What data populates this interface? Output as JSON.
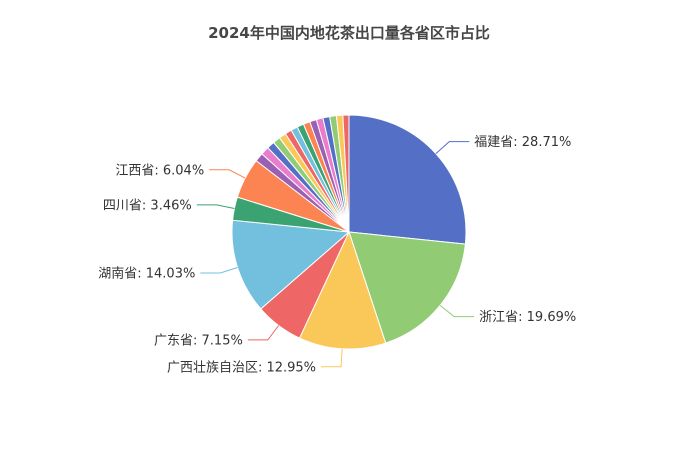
{
  "chart_data": {
    "type": "pie",
    "title": "2024年中国内地花茶出口量各省区市占比",
    "slices": [
      {
        "name": "福建省",
        "value": 28.71,
        "label": "福建省: 28.71%",
        "color": "#5470c6",
        "labeled": true
      },
      {
        "name": "浙江省",
        "value": 19.69,
        "label": "浙江省: 19.69%",
        "color": "#91cc75",
        "labeled": true
      },
      {
        "name": "广西壮族自治区",
        "value": 12.95,
        "label": "广西壮族自治区: 12.95%",
        "color": "#fac858",
        "labeled": true
      },
      {
        "name": "广东省",
        "value": 7.15,
        "label": "广东省: 7.15%",
        "color": "#ee6666",
        "labeled": true
      },
      {
        "name": "湖南省",
        "value": 14.03,
        "label": "湖南省: 14.03%",
        "color": "#73c0de",
        "labeled": true
      },
      {
        "name": "四川省",
        "value": 3.46,
        "label": "四川省: 3.46%",
        "color": "#3ba272",
        "labeled": true
      },
      {
        "name": "江西省",
        "value": 6.04,
        "label": "江西省: 6.04%",
        "color": "#fc8452",
        "labeled": true
      },
      {
        "value": 1.3,
        "color": "#9a60b4",
        "labeled": false
      },
      {
        "value": 1.25,
        "color": "#ea7ccc",
        "labeled": false
      },
      {
        "value": 1.15,
        "color": "#5470c6",
        "labeled": false
      },
      {
        "value": 1.1,
        "color": "#91cc75",
        "labeled": false
      },
      {
        "value": 1.05,
        "color": "#fac858",
        "labeled": false
      },
      {
        "value": 1.0,
        "color": "#ee6666",
        "labeled": false
      },
      {
        "value": 1.0,
        "color": "#73c0de",
        "labeled": false
      },
      {
        "value": 1.0,
        "color": "#3ba272",
        "labeled": false
      },
      {
        "value": 1.0,
        "color": "#fc8452",
        "labeled": false
      },
      {
        "value": 1.0,
        "color": "#9a60b4",
        "labeled": false
      },
      {
        "value": 1.0,
        "color": "#ea7ccc",
        "labeled": false
      },
      {
        "value": 1.0,
        "color": "#5470c6",
        "labeled": false
      },
      {
        "value": 1.0,
        "color": "#91cc75",
        "labeled": false
      },
      {
        "value": 0.95,
        "color": "#fac858",
        "labeled": false
      },
      {
        "value": 0.9,
        "color": "#ee6666",
        "labeled": false
      }
    ]
  }
}
